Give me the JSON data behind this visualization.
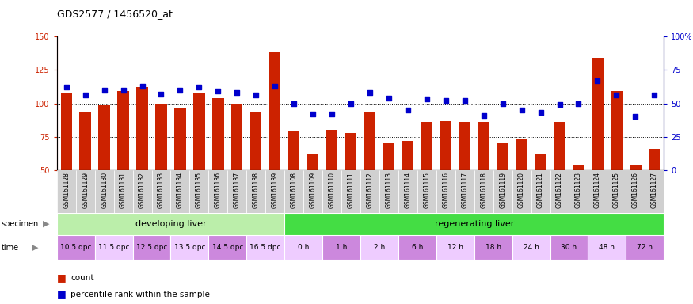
{
  "title": "GDS2577 / 1456520_at",
  "sample_ids": [
    "GSM161128",
    "GSM161129",
    "GSM161130",
    "GSM161131",
    "GSM161132",
    "GSM161133",
    "GSM161134",
    "GSM161135",
    "GSM161136",
    "GSM161137",
    "GSM161138",
    "GSM161139",
    "GSM161108",
    "GSM161109",
    "GSM161110",
    "GSM161111",
    "GSM161112",
    "GSM161113",
    "GSM161114",
    "GSM161115",
    "GSM161116",
    "GSM161117",
    "GSM161118",
    "GSM161119",
    "GSM161120",
    "GSM161121",
    "GSM161122",
    "GSM161123",
    "GSM161124",
    "GSM161125",
    "GSM161126",
    "GSM161127"
  ],
  "bar_values": [
    108,
    93,
    99,
    109,
    112,
    100,
    97,
    108,
    104,
    100,
    93,
    138,
    79,
    62,
    80,
    78,
    93,
    70,
    72,
    86,
    87,
    86,
    86,
    70,
    73,
    62,
    86,
    54,
    134,
    109,
    54,
    66
  ],
  "dot_values": [
    112,
    106,
    110,
    110,
    113,
    107,
    110,
    112,
    109,
    108,
    106,
    113,
    100,
    92,
    92,
    100,
    108,
    104,
    95,
    103,
    102,
    102,
    91,
    100,
    95,
    93,
    99,
    100,
    117,
    106,
    90,
    106
  ],
  "bar_color": "#cc2200",
  "dot_color": "#0000cc",
  "ylim_left": [
    50,
    150
  ],
  "ylim_right": [
    0,
    100
  ],
  "yticks_left": [
    50,
    75,
    100,
    125,
    150
  ],
  "yticks_right": [
    0,
    25,
    50,
    75,
    100
  ],
  "ytick_labels_right": [
    "0",
    "25",
    "50",
    "75",
    "100%"
  ],
  "grid_values": [
    75,
    100,
    125
  ],
  "specimen_groups": [
    {
      "label": "developing liver",
      "start": 0,
      "end": 12,
      "color": "#bbeeaa"
    },
    {
      "label": "regenerating liver",
      "start": 12,
      "end": 32,
      "color": "#44dd44"
    }
  ],
  "time_groups": [
    {
      "label": "10.5 dpc",
      "start": 0,
      "end": 2,
      "color": "#cc88dd"
    },
    {
      "label": "11.5 dpc",
      "start": 2,
      "end": 4,
      "color": "#eeccff"
    },
    {
      "label": "12.5 dpc",
      "start": 4,
      "end": 6,
      "color": "#cc88dd"
    },
    {
      "label": "13.5 dpc",
      "start": 6,
      "end": 8,
      "color": "#eeccff"
    },
    {
      "label": "14.5 dpc",
      "start": 8,
      "end": 10,
      "color": "#cc88dd"
    },
    {
      "label": "16.5 dpc",
      "start": 10,
      "end": 12,
      "color": "#eeccff"
    },
    {
      "label": "0 h",
      "start": 12,
      "end": 14,
      "color": "#eeccff"
    },
    {
      "label": "1 h",
      "start": 14,
      "end": 16,
      "color": "#cc88dd"
    },
    {
      "label": "2 h",
      "start": 16,
      "end": 18,
      "color": "#eeccff"
    },
    {
      "label": "6 h",
      "start": 18,
      "end": 20,
      "color": "#cc88dd"
    },
    {
      "label": "12 h",
      "start": 20,
      "end": 22,
      "color": "#eeccff"
    },
    {
      "label": "18 h",
      "start": 22,
      "end": 24,
      "color": "#cc88dd"
    },
    {
      "label": "24 h",
      "start": 24,
      "end": 26,
      "color": "#eeccff"
    },
    {
      "label": "30 h",
      "start": 26,
      "end": 28,
      "color": "#cc88dd"
    },
    {
      "label": "48 h",
      "start": 28,
      "end": 30,
      "color": "#eeccff"
    },
    {
      "label": "72 h",
      "start": 30,
      "end": 32,
      "color": "#cc88dd"
    }
  ]
}
